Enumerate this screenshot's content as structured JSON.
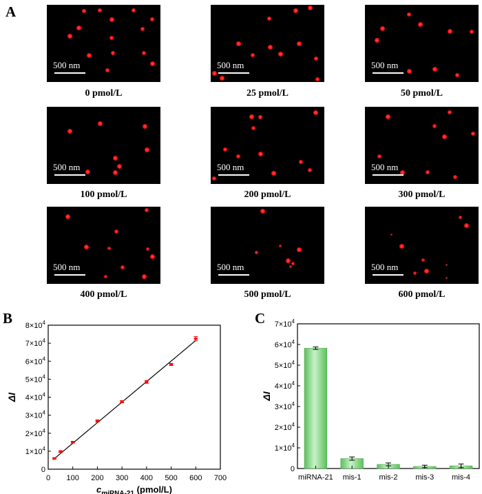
{
  "panel_a": {
    "letter": "A",
    "scale_text": "500 nm",
    "images": [
      {
        "label": "0 pmol/L",
        "spots": [
          [
            0.27,
            0.28
          ],
          [
            0.32,
            0.06
          ],
          [
            0.46,
            0.05
          ],
          [
            0.57,
            0.17
          ],
          [
            0.77,
            0.05
          ],
          [
            0.85,
            0.3
          ],
          [
            0.19,
            0.4
          ],
          [
            0.57,
            0.42
          ],
          [
            0.94,
            0.17
          ],
          [
            0.36,
            0.66
          ],
          [
            0.58,
            0.63
          ],
          [
            0.86,
            0.63
          ],
          [
            0.94,
            0.77
          ],
          [
            0.53,
            0.87
          ]
        ],
        "dim": 0.15
      },
      {
        "label": "25 pmol/L",
        "spots": [
          [
            0.75,
            0.05
          ],
          [
            0.88,
            0.01
          ],
          [
            0.51,
            0.16
          ],
          [
            0.23,
            0.5
          ],
          [
            0.52,
            0.55
          ],
          [
            0.36,
            0.66
          ],
          [
            0.61,
            0.64
          ],
          [
            0.78,
            0.5
          ],
          [
            0.94,
            0.71
          ],
          [
            0.01,
            0.91
          ],
          [
            0.08,
            0.97
          ],
          [
            0.95,
            0.99
          ]
        ],
        "dim": 0.1
      },
      {
        "label": "50 pmol/L",
        "spots": [
          [
            0.09,
            0.45
          ],
          [
            0.14,
            0.29
          ],
          [
            0.38,
            0.1
          ],
          [
            0.48,
            0.24
          ],
          [
            0.75,
            0.33
          ],
          [
            0.95,
            0.34
          ],
          [
            0.38,
            0.88
          ],
          [
            0.61,
            0.85
          ],
          [
            0.82,
            0.93
          ]
        ],
        "dim": 0.1
      },
      {
        "label": "100 pmol/L",
        "spots": [
          [
            0.19,
            0.3
          ],
          [
            0.46,
            0.2
          ],
          [
            0.87,
            0.24
          ],
          [
            0.89,
            0.56
          ],
          [
            0.6,
            0.67
          ],
          [
            0.64,
            0.78
          ],
          [
            0.6,
            0.87
          ],
          [
            0.35,
            0.86
          ]
        ],
        "dim": 0.05
      },
      {
        "label": "200 pmol/L",
        "spots": [
          [
            0.35,
            0.1
          ],
          [
            0.43,
            0.11
          ],
          [
            0.37,
            0.26
          ],
          [
            0.93,
            0.05
          ],
          [
            0.11,
            0.56
          ],
          [
            0.23,
            0.65
          ],
          [
            0.43,
            0.61
          ],
          [
            0.8,
            0.73
          ],
          [
            0.88,
            0.84
          ],
          [
            0.55,
            0.88
          ],
          [
            0.01,
            0.95
          ]
        ],
        "dim": 0.15
      },
      {
        "label": "300 pmol/L",
        "spots": [
          [
            0.19,
            0.1
          ],
          [
            0.75,
            0.05
          ],
          [
            0.61,
            0.24
          ],
          [
            0.7,
            0.38
          ],
          [
            0.96,
            0.34
          ],
          [
            0.11,
            0.65
          ],
          [
            0.32,
            0.87
          ],
          [
            0.55,
            0.87
          ],
          [
            0.8,
            0.93
          ]
        ],
        "dim": 0.2
      },
      {
        "label": "400 pmol/L",
        "spots": [
          [
            0.17,
            0.1
          ],
          [
            0.61,
            0.31
          ],
          [
            0.55,
            0.55
          ],
          [
            0.34,
            0.52
          ],
          [
            0.89,
            0.02
          ],
          [
            0.9,
            0.56
          ],
          [
            0.94,
            0.65
          ],
          [
            0.67,
            0.8
          ],
          [
            0.52,
            0.93
          ],
          [
            0.86,
            0.92
          ]
        ],
        "dim": 0.3
      },
      {
        "label": "500 pmol/L",
        "spots": [
          [
            0.45,
            0.03
          ],
          [
            0.4,
            0.6
          ],
          [
            0.62,
            0.52
          ],
          [
            0.68,
            0.71
          ],
          [
            0.73,
            0.75
          ],
          [
            0.71,
            0.8
          ],
          [
            0.78,
            0.56
          ]
        ],
        "dim": 0.5
      },
      {
        "label": "600 pmol/L",
        "spots": [
          [
            0.9,
            0.23
          ],
          [
            0.85,
            0.12
          ],
          [
            0.23,
            0.37
          ],
          [
            0.31,
            0.51
          ],
          [
            0.51,
            0.71
          ],
          [
            0.73,
            0.78
          ],
          [
            0.54,
            0.85
          ],
          [
            0.44,
            0.89
          ],
          [
            0.73,
            0.96
          ]
        ],
        "dim": 0.6
      }
    ]
  },
  "panel_b": {
    "letter": "B"
  },
  "panel_c": {
    "letter": "C"
  },
  "chart_data": [
    {
      "type": "scatter",
      "panel": "B",
      "x": [
        25,
        50,
        100,
        200,
        300,
        400,
        500,
        600
      ],
      "y": [
        6000,
        9800,
        15000,
        26800,
        37500,
        48500,
        58200,
        72500
      ],
      "error": [
        400,
        500,
        500,
        600,
        600,
        800,
        600,
        1200
      ],
      "fit_line": {
        "x": [
          20,
          600
        ],
        "y": [
          5300,
          71500
        ]
      },
      "xlabel": "c",
      "xlabel_sub": "miRNA-21",
      "xlabel_unit": " (pmol/L)",
      "ylabel": "ΔI",
      "xlim": [
        0,
        700
      ],
      "ylim": [
        0,
        80000
      ],
      "xticks": [
        "0",
        "100",
        "200",
        "300",
        "400",
        "500",
        "600",
        "700"
      ],
      "yticks": [
        {
          "value": 0,
          "base": "0",
          "exp": ""
        },
        {
          "value": 10000,
          "base": "1×10",
          "exp": "4"
        },
        {
          "value": 20000,
          "base": "2×10",
          "exp": "4"
        },
        {
          "value": 30000,
          "base": "3×10",
          "exp": "4"
        },
        {
          "value": 40000,
          "base": "4×10",
          "exp": "4"
        },
        {
          "value": 50000,
          "base": "5×10",
          "exp": "4"
        },
        {
          "value": 60000,
          "base": "6×10",
          "exp": "4"
        },
        {
          "value": 70000,
          "base": "7×10",
          "exp": "4"
        },
        {
          "value": 80000,
          "base": "8×10",
          "exp": "4"
        }
      ],
      "marker_color": "#ff0000",
      "line_color": "#000000",
      "grid": false
    },
    {
      "type": "bar",
      "panel": "C",
      "categories": [
        "miRNA-21",
        "mis-1",
        "mis-2",
        "mis-3",
        "mis-4"
      ],
      "values": [
        58200,
        4800,
        2000,
        1000,
        1300
      ],
      "error": [
        600,
        800,
        700,
        600,
        900
      ],
      "ylabel": "ΔI",
      "ylim": [
        0,
        70000
      ],
      "yticks": [
        {
          "value": 0,
          "base": "0",
          "exp": ""
        },
        {
          "value": 10000,
          "base": "1×10",
          "exp": "4"
        },
        {
          "value": 20000,
          "base": "2×10",
          "exp": "4"
        },
        {
          "value": 30000,
          "base": "3×10",
          "exp": "4"
        },
        {
          "value": 40000,
          "base": "4×10",
          "exp": "4"
        },
        {
          "value": 50000,
          "base": "5×10",
          "exp": "4"
        },
        {
          "value": 60000,
          "base": "6×10",
          "exp": "4"
        },
        {
          "value": 70000,
          "base": "7×10",
          "exp": "4"
        }
      ],
      "bar_color": "#7cd47c",
      "grid": false
    }
  ]
}
